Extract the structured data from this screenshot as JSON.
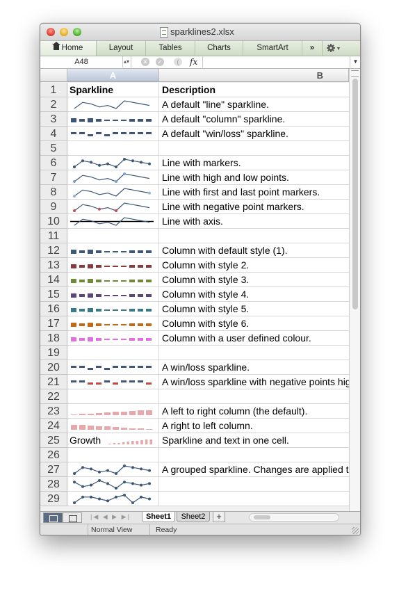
{
  "window": {
    "title": "sparklines2.xlsx"
  },
  "ribbon": {
    "tabs": [
      "Home",
      "Layout",
      "Tables",
      "Charts",
      "SmartArt"
    ],
    "overflow": "»"
  },
  "formula_bar": {
    "cell_ref": "A48",
    "fx_label": "fx",
    "value": ""
  },
  "columns": [
    "A",
    "B"
  ],
  "rows": [
    {
      "num": "1",
      "a": "Sparkline",
      "b": "Description",
      "header": true
    },
    {
      "num": "2",
      "b": "A default \"line\" sparkline.",
      "spark": {
        "kind": "line",
        "color": "#3e5678"
      }
    },
    {
      "num": "3",
      "b": "A default \"column\" sparkline.",
      "spark": {
        "kind": "column",
        "color": "#3e5678"
      }
    },
    {
      "num": "4",
      "b": "A default \"win/loss\" sparkline.",
      "spark": {
        "kind": "winloss",
        "color": "#3e5678"
      }
    },
    {
      "num": "5",
      "b": ""
    },
    {
      "num": "6",
      "b": "Line with markers.",
      "spark": {
        "kind": "line",
        "color": "#3e5678",
        "markers": "all"
      }
    },
    {
      "num": "7",
      "b": "Line with high and low points.",
      "spark": {
        "kind": "line",
        "color": "#3e5678",
        "markers": "highlow"
      }
    },
    {
      "num": "8",
      "b": "Line with first and last point markers.",
      "spark": {
        "kind": "line",
        "color": "#3e5678",
        "markers": "firstlast"
      }
    },
    {
      "num": "9",
      "b": "Line with negative point markers.",
      "spark": {
        "kind": "line",
        "color": "#3e5678",
        "markers": "negative"
      }
    },
    {
      "num": "10",
      "b": "Line with axis.",
      "spark": {
        "kind": "line",
        "color": "#3e5678",
        "axis": true
      }
    },
    {
      "num": "11",
      "b": ""
    },
    {
      "num": "12",
      "b": "Column with default style (1).",
      "spark": {
        "kind": "column",
        "color": "#3e5678"
      }
    },
    {
      "num": "13",
      "b": "Column with style 2.",
      "spark": {
        "kind": "column",
        "color": "#8a3a3a"
      }
    },
    {
      "num": "14",
      "b": "Column with style 3.",
      "spark": {
        "kind": "column",
        "color": "#6e8a3a"
      }
    },
    {
      "num": "15",
      "b": "Column with style 4.",
      "spark": {
        "kind": "column",
        "color": "#5a4678"
      }
    },
    {
      "num": "16",
      "b": "Column with style 5.",
      "spark": {
        "kind": "column",
        "color": "#3a7a88"
      }
    },
    {
      "num": "17",
      "b": "Column with style 6.",
      "spark": {
        "kind": "column",
        "color": "#c06a1a"
      }
    },
    {
      "num": "18",
      "b": "Column with a user defined colour.",
      "spark": {
        "kind": "column",
        "color": "#e070e0"
      }
    },
    {
      "num": "19",
      "b": ""
    },
    {
      "num": "20",
      "b": "A win/loss sparkline.",
      "spark": {
        "kind": "winloss",
        "color": "#3e5678"
      }
    },
    {
      "num": "21",
      "b": "A win/loss sparkline with negative points highlighted.",
      "spark": {
        "kind": "winloss",
        "color": "#3e5678",
        "neg_color": "#c04a4a"
      }
    },
    {
      "num": "22",
      "b": ""
    },
    {
      "num": "23",
      "b": "A left to right column (the default).",
      "spark": {
        "kind": "bars_rising",
        "color": "#e6a8a8"
      }
    },
    {
      "num": "24",
      "b": "A right to left column.",
      "spark": {
        "kind": "bars_falling",
        "color": "#e6a8a8"
      }
    },
    {
      "num": "25",
      "a": "Growth",
      "b": "Sparkline and text in one cell.",
      "spark": {
        "kind": "bars_rising",
        "color": "#e6a8a8",
        "narrow": true
      }
    },
    {
      "num": "26",
      "b": ""
    },
    {
      "num": "27",
      "b": "A grouped sparkline. Changes are applied to all three.",
      "spark": {
        "kind": "line",
        "color": "#3e5678",
        "markers": "all",
        "variant": 0
      }
    },
    {
      "num": "28",
      "b": "",
      "spark": {
        "kind": "line",
        "color": "#3e5678",
        "markers": "all",
        "variant": 1
      }
    },
    {
      "num": "29",
      "b": "",
      "spark": {
        "kind": "line",
        "color": "#3e5678",
        "markers": "all",
        "variant": 2
      }
    }
  ],
  "sheets": [
    "Sheet1",
    "Sheet2"
  ],
  "active_sheet": "Sheet1",
  "status": {
    "view": "Normal View",
    "state": "Ready"
  }
}
